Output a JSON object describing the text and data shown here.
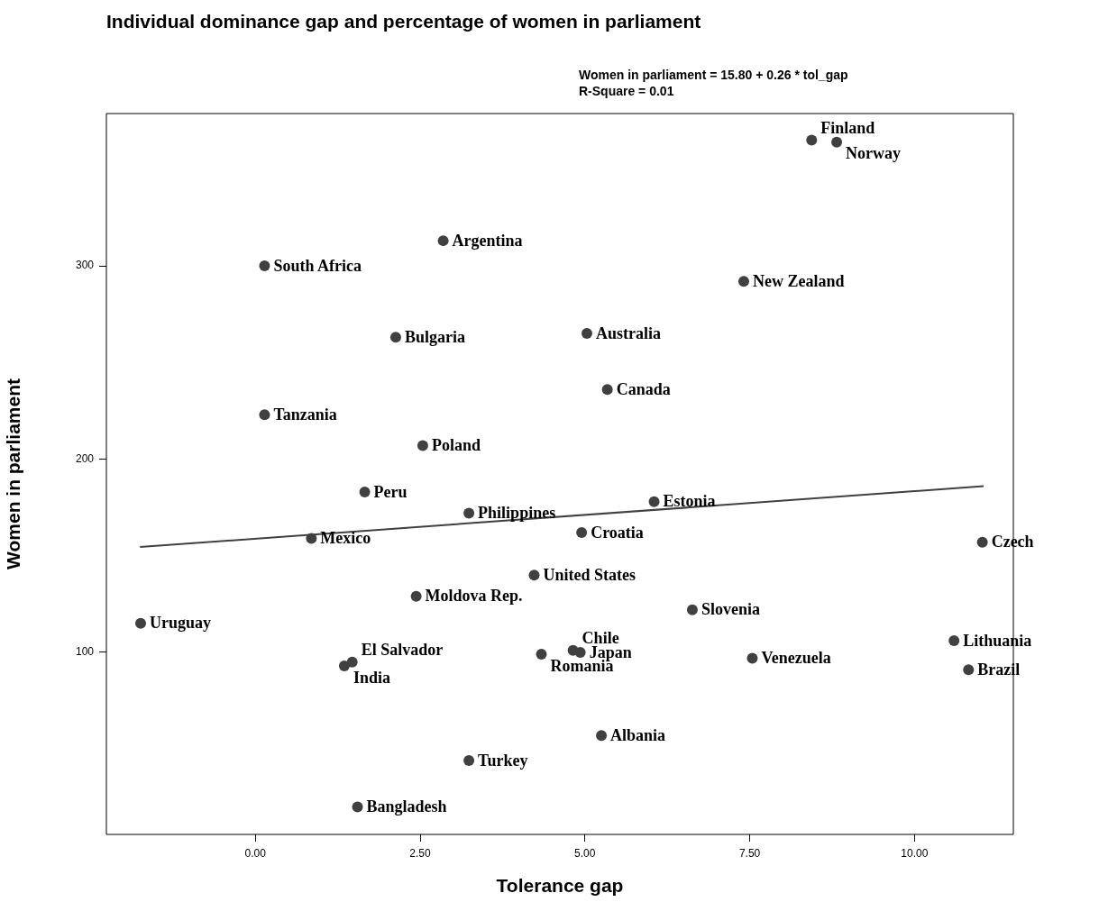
{
  "chart_data": {
    "type": "scatter",
    "title": "Individual dominance gap and percentage of women in parliament",
    "xlabel": "Tolerance gap",
    "ylabel": "Women in parliament",
    "annotations": [
      "Women in parliament = 15.80 + 0.26 * tol_gap",
      "R-Square = 0.01"
    ],
    "series": [
      {
        "color": "#404040",
        "marker": "circle",
        "x": [
          8.44,
          8.82,
          2.85,
          0.14,
          7.41,
          2.13,
          5.03,
          5.34,
          0.14,
          2.54,
          1.66,
          3.24,
          6.05,
          4.95,
          0.85,
          11.03,
          4.23,
          2.44,
          6.63,
          -1.74,
          10.6,
          10.82,
          7.54,
          4.34,
          4.82,
          4.93,
          1.35,
          1.47,
          5.25,
          3.24,
          1.55
        ],
        "values": [
          365,
          364,
          313,
          300,
          292,
          263,
          265,
          236,
          223,
          207,
          183,
          172,
          178,
          162,
          159,
          157,
          140,
          129,
          122,
          115,
          106,
          91,
          97,
          99,
          101,
          100,
          93,
          95,
          57,
          44,
          20
        ],
        "value_labels": [
          "Finland",
          "Norway",
          "Argentina",
          "South Africa",
          "New Zealand",
          "Bulgaria",
          "Australia",
          "Canada",
          "Tanzania",
          "Poland",
          "Peru",
          "Philippines",
          "Estonia",
          "Croatia",
          "Mexico",
          "Czech",
          "United States",
          "Moldova Rep.",
          "Slovenia",
          "Uruguay",
          "Lithuania",
          "Brazil",
          "Venezuela",
          "Romania",
          "Chile",
          "Japan",
          "India",
          "El Salvador",
          "Albania",
          "Turkey",
          "Bangladesh"
        ]
      },
      {
        "type": "line",
        "color": "#404040",
        "marker": "none",
        "line_style": "solid",
        "x": [
          -1.75,
          11.05
        ],
        "values": [
          154.5,
          186
        ]
      }
    ],
    "xlim": [
      -2.26,
      11.5
    ],
    "xticks": [
      {
        "value": 0,
        "label": "0.00"
      },
      {
        "value": 2.5,
        "label": "2.50"
      },
      {
        "value": 5,
        "label": "5.00"
      },
      {
        "value": 7.5,
        "label": "7.50"
      },
      {
        "value": 10,
        "label": "10.00"
      }
    ],
    "ylim": [
      5.8,
      378.8
    ],
    "yticks": [
      100,
      200,
      300
    ],
    "grid": false,
    "legend": false
  }
}
